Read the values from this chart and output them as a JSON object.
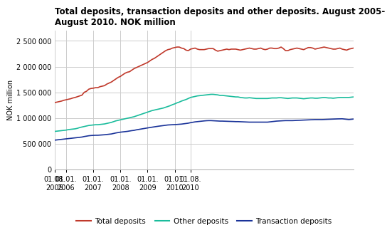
{
  "title": "Total deposits, transaction deposits and other deposits. August 2005-\nAugust 2010. NOK million",
  "ylabel": "NOK million",
  "ylim": [
    0,
    2700000
  ],
  "yticks": [
    0,
    500000,
    1000000,
    1500000,
    2000000,
    2500000
  ],
  "ytick_labels": [
    "0",
    "500 000",
    "1 000 000",
    "1 500 000",
    "2 000 000",
    "2 500 000"
  ],
  "background_color": "#ffffff",
  "grid_color": "#cccccc",
  "series": {
    "total": {
      "color": "#c0392b",
      "label": "Total deposits",
      "values": [
        1300000,
        1310000,
        1320000,
        1330000,
        1345000,
        1355000,
        1365000,
        1375000,
        1390000,
        1400000,
        1415000,
        1430000,
        1445000,
        1500000,
        1520000,
        1560000,
        1575000,
        1580000,
        1590000,
        1590000,
        1610000,
        1620000,
        1630000,
        1660000,
        1680000,
        1700000,
        1730000,
        1760000,
        1790000,
        1810000,
        1840000,
        1870000,
        1890000,
        1900000,
        1930000,
        1960000,
        1980000,
        2000000,
        2020000,
        2040000,
        2060000,
        2080000,
        2110000,
        2140000,
        2160000,
        2190000,
        2220000,
        2250000,
        2280000,
        2310000,
        2330000,
        2340000,
        2360000,
        2370000,
        2380000,
        2380000,
        2360000,
        2350000,
        2320000,
        2310000,
        2340000,
        2350000,
        2360000,
        2340000,
        2330000,
        2330000,
        2330000,
        2340000,
        2350000,
        2350000,
        2350000,
        2320000,
        2300000,
        2310000,
        2320000,
        2330000,
        2340000,
        2330000,
        2340000,
        2340000,
        2340000,
        2330000,
        2320000,
        2330000,
        2340000,
        2350000,
        2360000,
        2350000,
        2340000,
        2340000,
        2350000,
        2360000,
        2340000,
        2330000,
        2340000,
        2360000,
        2360000,
        2350000,
        2350000,
        2360000,
        2380000,
        2350000,
        2310000,
        2310000,
        2330000,
        2340000,
        2350000,
        2360000,
        2350000,
        2340000,
        2330000,
        2350000,
        2370000,
        2370000,
        2360000,
        2340000,
        2350000,
        2360000,
        2370000,
        2380000,
        2370000,
        2360000,
        2350000,
        2340000,
        2340000,
        2350000,
        2360000,
        2340000,
        2330000,
        2320000,
        2340000,
        2350000,
        2360000
      ]
    },
    "other": {
      "color": "#1abc9c",
      "label": "Other deposits",
      "values": [
        740000,
        745000,
        750000,
        755000,
        760000,
        765000,
        775000,
        780000,
        785000,
        790000,
        800000,
        815000,
        825000,
        835000,
        845000,
        855000,
        860000,
        865000,
        870000,
        870000,
        875000,
        880000,
        885000,
        895000,
        905000,
        915000,
        930000,
        945000,
        955000,
        965000,
        975000,
        985000,
        995000,
        1005000,
        1015000,
        1025000,
        1040000,
        1055000,
        1070000,
        1085000,
        1100000,
        1115000,
        1130000,
        1145000,
        1155000,
        1165000,
        1175000,
        1185000,
        1195000,
        1210000,
        1225000,
        1240000,
        1260000,
        1275000,
        1295000,
        1310000,
        1330000,
        1345000,
        1360000,
        1380000,
        1400000,
        1410000,
        1420000,
        1430000,
        1435000,
        1440000,
        1445000,
        1450000,
        1455000,
        1460000,
        1460000,
        1455000,
        1450000,
        1440000,
        1440000,
        1435000,
        1430000,
        1425000,
        1420000,
        1415000,
        1410000,
        1410000,
        1400000,
        1395000,
        1390000,
        1390000,
        1395000,
        1390000,
        1385000,
        1380000,
        1380000,
        1380000,
        1380000,
        1380000,
        1380000,
        1385000,
        1390000,
        1390000,
        1390000,
        1395000,
        1395000,
        1390000,
        1385000,
        1380000,
        1385000,
        1390000,
        1390000,
        1390000,
        1385000,
        1380000,
        1375000,
        1380000,
        1385000,
        1390000,
        1390000,
        1385000,
        1385000,
        1390000,
        1395000,
        1400000,
        1395000,
        1390000,
        1390000,
        1385000,
        1390000,
        1395000,
        1400000,
        1400000,
        1400000,
        1400000,
        1400000,
        1405000,
        1410000
      ]
    },
    "transaction": {
      "color": "#1a3399",
      "label": "Transaction deposits",
      "values": [
        570000,
        575000,
        580000,
        585000,
        590000,
        595000,
        600000,
        605000,
        610000,
        615000,
        620000,
        625000,
        630000,
        640000,
        648000,
        655000,
        660000,
        663000,
        665000,
        665000,
        668000,
        672000,
        675000,
        680000,
        685000,
        690000,
        700000,
        710000,
        718000,
        725000,
        730000,
        735000,
        740000,
        748000,
        755000,
        760000,
        770000,
        778000,
        785000,
        792000,
        800000,
        808000,
        815000,
        822000,
        828000,
        835000,
        842000,
        848000,
        855000,
        860000,
        865000,
        868000,
        870000,
        872000,
        875000,
        878000,
        882000,
        888000,
        894000,
        900000,
        910000,
        918000,
        925000,
        930000,
        935000,
        940000,
        944000,
        948000,
        950000,
        950000,
        948000,
        945000,
        942000,
        940000,
        940000,
        938000,
        937000,
        935000,
        934000,
        932000,
        930000,
        930000,
        928000,
        926000,
        924000,
        922000,
        920000,
        920000,
        920000,
        920000,
        920000,
        920000,
        920000,
        920000,
        920000,
        925000,
        930000,
        935000,
        940000,
        943000,
        946000,
        948000,
        950000,
        950000,
        950000,
        950000,
        952000,
        954000,
        956000,
        958000,
        960000,
        962000,
        964000,
        966000,
        968000,
        970000,
        970000,
        970000,
        970000,
        972000,
        974000,
        976000,
        978000,
        980000,
        982000,
        983000,
        984000,
        985000,
        980000,
        975000,
        970000,
        975000,
        980000
      ]
    }
  },
  "xtick_positions": [
    0,
    5,
    17,
    29,
    41,
    53,
    60
  ],
  "xtick_labels": [
    "01.08.\n2005",
    "01.01.\n2006",
    "01.01.\n2007",
    "01.01.\n2008",
    "01.01.\n2009",
    "01.01.\n2010",
    "01.08.\n2010"
  ],
  "legend_labels": [
    "Total deposits",
    "Other deposits",
    "Transaction deposits"
  ],
  "legend_colors": [
    "#c0392b",
    "#1abc9c",
    "#1a3399"
  ]
}
